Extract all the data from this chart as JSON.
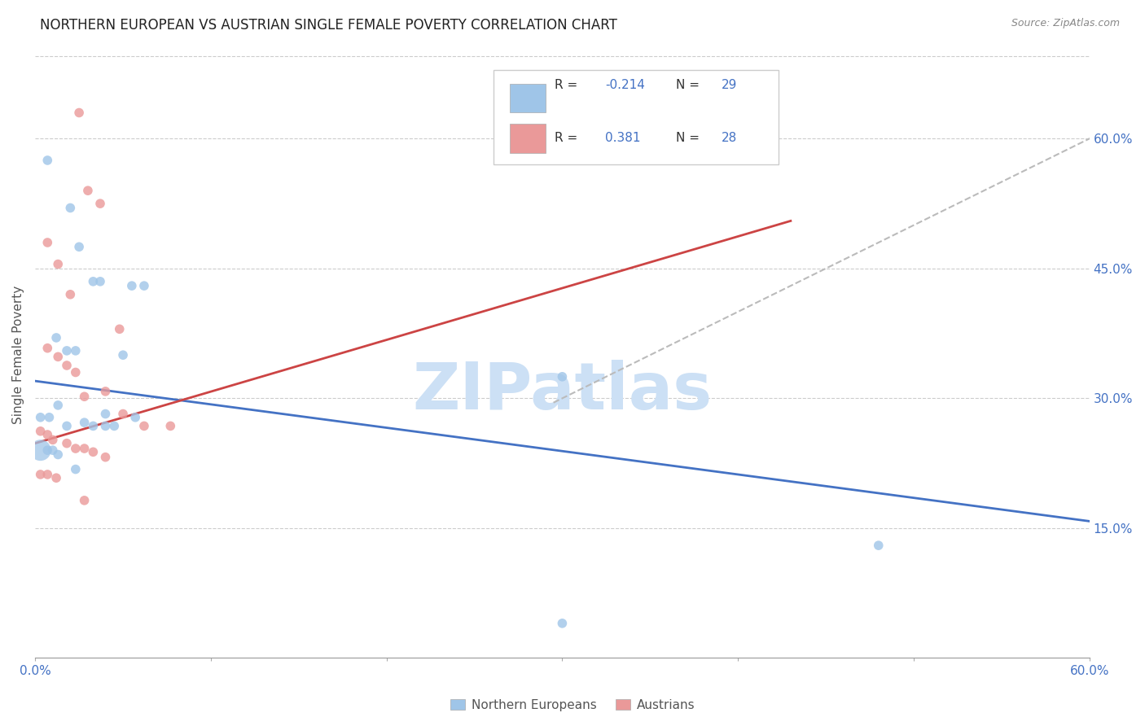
{
  "title": "NORTHERN EUROPEAN VS AUSTRIAN SINGLE FEMALE POVERTY CORRELATION CHART",
  "source": "Source: ZipAtlas.com",
  "ylabel": "Single Female Poverty",
  "yticks": [
    "15.0%",
    "30.0%",
    "45.0%",
    "60.0%"
  ],
  "ytick_vals": [
    0.15,
    0.3,
    0.45,
    0.6
  ],
  "xlim": [
    0.0,
    0.6
  ],
  "ylim": [
    0.0,
    0.7
  ],
  "blue_color": "#9fc5e8",
  "pink_color": "#ea9999",
  "blue_fill": "#a4c2f4",
  "pink_fill": "#f4cccc",
  "trendline_blue": "#4472c4",
  "trendline_pink": "#cc4444",
  "trendline_dashed": "#bbbbbb",
  "legend_R_blue": "-0.214",
  "legend_N_blue": "29",
  "legend_R_pink": "0.381",
  "legend_N_pink": "28",
  "blue_points": [
    [
      0.007,
      0.575
    ],
    [
      0.02,
      0.52
    ],
    [
      0.025,
      0.475
    ],
    [
      0.033,
      0.435
    ],
    [
      0.037,
      0.435
    ],
    [
      0.012,
      0.37
    ],
    [
      0.018,
      0.355
    ],
    [
      0.023,
      0.355
    ],
    [
      0.05,
      0.35
    ],
    [
      0.055,
      0.43
    ],
    [
      0.062,
      0.43
    ],
    [
      0.003,
      0.278
    ],
    [
      0.008,
      0.278
    ],
    [
      0.013,
      0.292
    ],
    [
      0.018,
      0.268
    ],
    [
      0.028,
      0.272
    ],
    [
      0.033,
      0.268
    ],
    [
      0.04,
      0.282
    ],
    [
      0.045,
      0.268
    ],
    [
      0.057,
      0.278
    ],
    [
      0.003,
      0.24
    ],
    [
      0.007,
      0.24
    ],
    [
      0.01,
      0.24
    ],
    [
      0.013,
      0.235
    ],
    [
      0.023,
      0.218
    ],
    [
      0.04,
      0.268
    ],
    [
      0.3,
      0.325
    ],
    [
      0.48,
      0.13
    ],
    [
      0.3,
      0.04
    ]
  ],
  "pink_points": [
    [
      0.025,
      0.63
    ],
    [
      0.03,
      0.54
    ],
    [
      0.037,
      0.525
    ],
    [
      0.007,
      0.48
    ],
    [
      0.013,
      0.455
    ],
    [
      0.02,
      0.42
    ],
    [
      0.048,
      0.38
    ],
    [
      0.007,
      0.358
    ],
    [
      0.013,
      0.348
    ],
    [
      0.018,
      0.338
    ],
    [
      0.023,
      0.33
    ],
    [
      0.028,
      0.302
    ],
    [
      0.04,
      0.308
    ],
    [
      0.05,
      0.282
    ],
    [
      0.062,
      0.268
    ],
    [
      0.077,
      0.268
    ],
    [
      0.003,
      0.262
    ],
    [
      0.007,
      0.258
    ],
    [
      0.01,
      0.252
    ],
    [
      0.018,
      0.248
    ],
    [
      0.023,
      0.242
    ],
    [
      0.028,
      0.242
    ],
    [
      0.033,
      0.238
    ],
    [
      0.04,
      0.232
    ],
    [
      0.003,
      0.212
    ],
    [
      0.007,
      0.212
    ],
    [
      0.012,
      0.208
    ],
    [
      0.028,
      0.182
    ]
  ],
  "blue_trendline_x": [
    0.0,
    0.6
  ],
  "blue_trendline_y": [
    0.32,
    0.158
  ],
  "pink_trendline_x": [
    0.0,
    0.43
  ],
  "pink_trendline_y": [
    0.248,
    0.505
  ],
  "dashed_line_x": [
    0.295,
    0.65
  ],
  "dashed_line_y": [
    0.295,
    0.65
  ],
  "watermark_text": "ZIPatlas",
  "watermark_color": "#cce0f5",
  "big_blue_point": [
    0.003,
    0.24
  ],
  "big_blue_size": 350,
  "regular_size": 70
}
